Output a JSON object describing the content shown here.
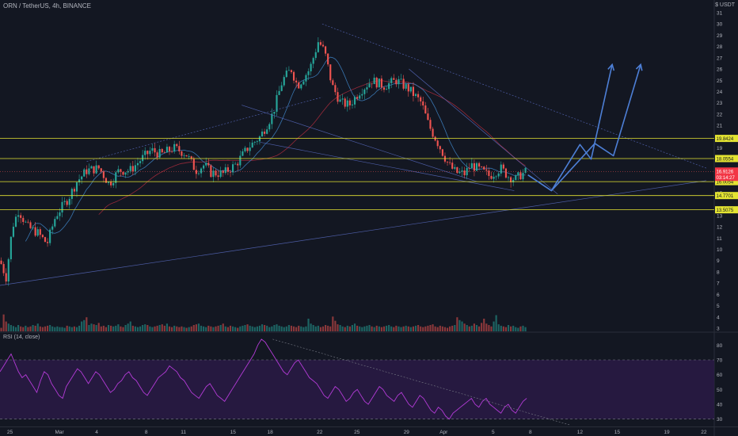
{
  "chart_data": {
    "type": "candlestick",
    "title": "ORN / TetherUS, 4h, BINANCE",
    "unit": "$ USDT",
    "colors": {
      "bg": "#131722",
      "up": "#26a69a",
      "down": "#ef5350",
      "hline": "#e4e432",
      "trend": "#5b6ec6",
      "arrow": "#4d7fd6",
      "ma_fast": "#3d7fbf",
      "ma_slow": "#a52b3c",
      "rsi": "#b33bd6",
      "rsi_band": "#2a1a45"
    },
    "price_axis": {
      "min": 3,
      "max": 31,
      "ticks": [
        31,
        30,
        29,
        28,
        27,
        26,
        25,
        24,
        23,
        22,
        21,
        20,
        19,
        18,
        17,
        16,
        15,
        14,
        13,
        12,
        11,
        10,
        9,
        8,
        7,
        6,
        5,
        4,
        3
      ],
      "skip": [
        14,
        16,
        17
      ]
    },
    "x_axis": {
      "start": 0,
      "end": 50,
      "ticks": [
        {
          "t": 0.8,
          "label": "25"
        },
        {
          "t": 4.8,
          "label": "Mar"
        },
        {
          "t": 7.8,
          "label": "4"
        },
        {
          "t": 11.8,
          "label": "8"
        },
        {
          "t": 14.8,
          "label": "11"
        },
        {
          "t": 18.8,
          "label": "15"
        },
        {
          "t": 21.8,
          "label": "18"
        },
        {
          "t": 25.8,
          "label": "22"
        },
        {
          "t": 28.8,
          "label": "25"
        },
        {
          "t": 32.8,
          "label": "29"
        },
        {
          "t": 35.8,
          "label": "Apr"
        },
        {
          "t": 39.8,
          "label": "5"
        },
        {
          "t": 42.8,
          "label": "8"
        },
        {
          "t": 46.8,
          "label": "12"
        },
        {
          "t": 49.8,
          "label": "15"
        },
        {
          "t": 53.8,
          "label": "19"
        },
        {
          "t": 56.8,
          "label": "22"
        }
      ]
    },
    "price_keypoints": [
      [
        0,
        9
      ],
      [
        0.5,
        7.5
      ],
      [
        1,
        12
      ],
      [
        1.5,
        13.5
      ],
      [
        2.2,
        12
      ],
      [
        3,
        11.5
      ],
      [
        3.8,
        10.5
      ],
      [
        4.5,
        13
      ],
      [
        5.5,
        14.5
      ],
      [
        6.2,
        16
      ],
      [
        7,
        17
      ],
      [
        8,
        17.2
      ],
      [
        8.8,
        15.8
      ],
      [
        9.6,
        17
      ],
      [
        10.5,
        17
      ],
      [
        11.4,
        18
      ],
      [
        12.2,
        18.8
      ],
      [
        13,
        18.4
      ],
      [
        14,
        19
      ],
      [
        15,
        18.5
      ],
      [
        15.8,
        17
      ],
      [
        16.5,
        17.5
      ],
      [
        17,
        16.8
      ],
      [
        18,
        16.7
      ],
      [
        19,
        17.5
      ],
      [
        20,
        19
      ],
      [
        21,
        20
      ],
      [
        22,
        22
      ],
      [
        22.8,
        25
      ],
      [
        23.5,
        26
      ],
      [
        24,
        24.5
      ],
      [
        25,
        26
      ],
      [
        25.7,
        28.5
      ],
      [
        26.2,
        27.5
      ],
      [
        26.8,
        24.5
      ],
      [
        27.5,
        23
      ],
      [
        28.2,
        22.8
      ],
      [
        29,
        24
      ],
      [
        30,
        25
      ],
      [
        31,
        24.5
      ],
      [
        32,
        25
      ],
      [
        33,
        24.2
      ],
      [
        34,
        23
      ],
      [
        34.6,
        21
      ],
      [
        35.3,
        19.5
      ],
      [
        36.2,
        17.5
      ],
      [
        36.8,
        16.8
      ],
      [
        37.5,
        16.7
      ],
      [
        38,
        17.5
      ],
      [
        38.8,
        17
      ],
      [
        39.5,
        16.5
      ],
      [
        40.4,
        17.2
      ],
      [
        41,
        16.5
      ],
      [
        41.6,
        16.2
      ],
      [
        42,
        16.6
      ],
      [
        42.5,
        16.9
      ]
    ],
    "volume": {
      "max": 90,
      "values": [
        10,
        48,
        28,
        22,
        18,
        15,
        12,
        18,
        14,
        12,
        16,
        12,
        14,
        18,
        16,
        22,
        14,
        12,
        14,
        16,
        18,
        14,
        12,
        14,
        12,
        12,
        10,
        16,
        14,
        12,
        14,
        12,
        16,
        28,
        32,
        40,
        18,
        22,
        20,
        18,
        24,
        14,
        16,
        12,
        18,
        16,
        14,
        16,
        20,
        14,
        12,
        18,
        22,
        28,
        16,
        14,
        12,
        14,
        18,
        20,
        18,
        14,
        12,
        14,
        16,
        18,
        20,
        16,
        22,
        14,
        12,
        16,
        14,
        12,
        14,
        12,
        10,
        12,
        14,
        18,
        20,
        22,
        16,
        14,
        12,
        16,
        14,
        12,
        14,
        16,
        18,
        22,
        14,
        12,
        16,
        14,
        12,
        10,
        14,
        16,
        18,
        20,
        16,
        14,
        12,
        14,
        16,
        20,
        18,
        16,
        12,
        14,
        18,
        20,
        16,
        14,
        12,
        14,
        18,
        16,
        14,
        12,
        16,
        14,
        12,
        14,
        36,
        22,
        18,
        14,
        16,
        12,
        14,
        18,
        16,
        14,
        42,
        30,
        20,
        18,
        14,
        12,
        16,
        14,
        18,
        22,
        16,
        14,
        12,
        14,
        16,
        18,
        14,
        12,
        16,
        14,
        12,
        14,
        16,
        18,
        14,
        12,
        16,
        14,
        12,
        14,
        16,
        14,
        12,
        14,
        16,
        18,
        14,
        12,
        14,
        16,
        18,
        20,
        14,
        12,
        16,
        14,
        12,
        10,
        14,
        16,
        18,
        40,
        32,
        28,
        22,
        18,
        14,
        16,
        22,
        18,
        14,
        24,
        36,
        22,
        18,
        14,
        28,
        46,
        20,
        16,
        14,
        12,
        18,
        14,
        16,
        12,
        10,
        14,
        16,
        12,
        14,
        10,
        12,
        14,
        10,
        8,
        12,
        10
      ]
    },
    "rsi": {
      "title": "RSI (14, close)",
      "min": 25,
      "max": 85,
      "ticks": [
        80,
        70,
        60,
        50,
        40,
        30
      ],
      "band": [
        30,
        70
      ],
      "values": [
        62,
        66,
        70,
        74,
        68,
        62,
        58,
        60,
        56,
        52,
        48,
        56,
        62,
        60,
        54,
        50,
        46,
        44,
        52,
        56,
        60,
        64,
        62,
        58,
        54,
        58,
        62,
        60,
        56,
        52,
        48,
        50,
        54,
        56,
        60,
        62,
        58,
        56,
        52,
        48,
        46,
        50,
        54,
        58,
        60,
        62,
        66,
        64,
        62,
        58,
        56,
        52,
        48,
        46,
        44,
        48,
        52,
        54,
        50,
        46,
        44,
        42,
        46,
        50,
        54,
        58,
        62,
        66,
        70,
        74,
        80,
        84,
        82,
        78,
        74,
        70,
        66,
        62,
        60,
        64,
        68,
        70,
        66,
        62,
        58,
        56,
        54,
        50,
        46,
        44,
        48,
        52,
        50,
        46,
        42,
        44,
        48,
        50,
        46,
        42,
        40,
        44,
        48,
        52,
        50,
        46,
        44,
        42,
        46,
        48,
        44,
        40,
        38,
        42,
        46,
        44,
        40,
        36,
        34,
        38,
        36,
        32,
        30,
        34,
        36,
        38,
        40,
        42,
        44,
        40,
        38,
        42,
        44,
        40,
        38,
        36,
        34,
        38,
        40,
        36,
        34,
        38,
        42,
        44
      ]
    },
    "hlines": [
      {
        "price": 19.8424,
        "label": "19.8424"
      },
      {
        "price": 18.0554,
        "label": "18.0554"
      },
      {
        "price": 16.0054,
        "label": "16.0054"
      },
      {
        "price": 14.7701,
        "label": "14.7701"
      },
      {
        "price": 13.5075,
        "label": "13.5075"
      }
    ],
    "current": {
      "price": 16.9126,
      "label": "16.9126",
      "countdown": "03:14:27"
    },
    "trendlines": [
      {
        "from": [
          0,
          6.8
        ],
        "to": [
          57,
          16.1
        ]
      },
      {
        "from": [
          21,
          19.5
        ],
        "to": [
          41.5,
          15.2
        ]
      },
      {
        "from": [
          19.5,
          22.8
        ],
        "to": [
          38.5,
          16.0
        ]
      },
      {
        "from": [
          26,
          30.0
        ],
        "to": [
          57,
          17.2
        ],
        "dashed": true
      },
      {
        "from": [
          7,
          17.8
        ],
        "to": [
          26,
          23.5
        ],
        "dashed": true
      },
      {
        "from": [
          33,
          26
        ],
        "to": [
          45,
          14.9
        ]
      }
    ],
    "projection": [
      [
        42.6,
        16.6
      ],
      [
        44.5,
        15.2
      ],
      [
        46.8,
        19.3
      ],
      [
        47.7,
        18.0
      ],
      [
        49.4,
        26.4
      ]
    ],
    "projection2": [
      [
        44.5,
        15.2
      ],
      [
        48.0,
        19.4
      ],
      [
        49.5,
        18.3
      ],
      [
        51.7,
        26.4
      ]
    ]
  }
}
